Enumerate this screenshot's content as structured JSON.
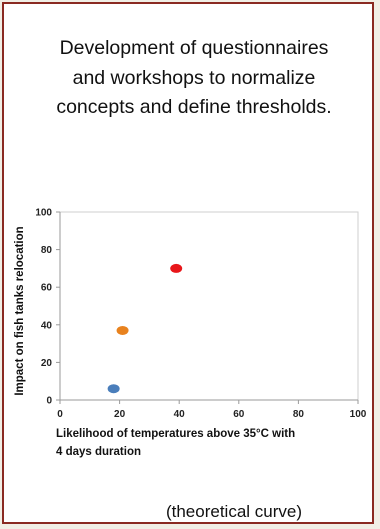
{
  "title": "Development of questionnaires and workshops to normalize concepts and define thresholds.",
  "caption": "(theoretical curve)",
  "chart_data": {
    "type": "scatter",
    "xlabel_lines": [
      "Likelihood of temperatures above 35°C with",
      "4 days duration"
    ],
    "ylabel": "Impact on fish tanks relocation",
    "xlim": [
      0,
      100
    ],
    "ylim": [
      0,
      100
    ],
    "xticks": [
      0,
      20,
      40,
      60,
      80,
      100
    ],
    "yticks": [
      0,
      20,
      40,
      60,
      80,
      100
    ],
    "grid": false,
    "points": [
      {
        "x": 18,
        "y": 6,
        "color": "#4a7ebb"
      },
      {
        "x": 21,
        "y": 37,
        "color": "#e8821e"
      },
      {
        "x": 39,
        "y": 70,
        "color": "#e8161a"
      }
    ]
  }
}
